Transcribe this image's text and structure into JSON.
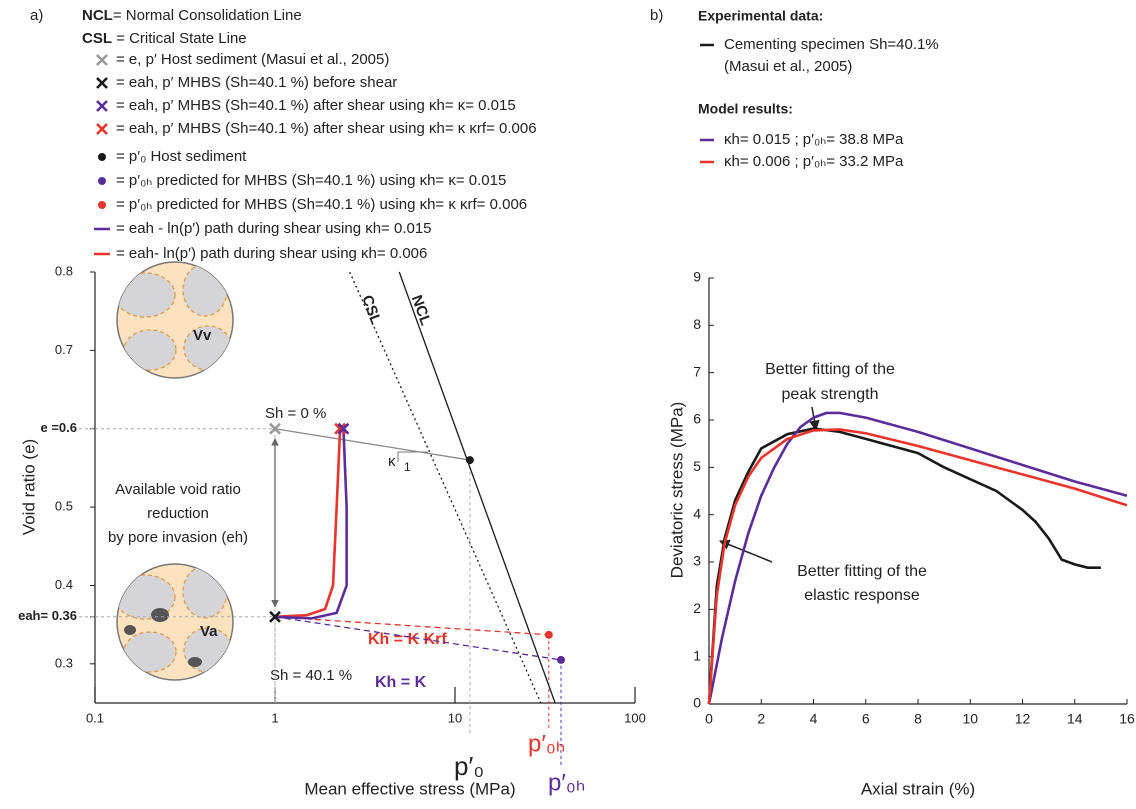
{
  "chart_data": [
    {
      "type": "line",
      "panel": "a)",
      "definitions": [
        {
          "term": "NCL",
          "text": "= Normal Consolidation Line"
        },
        {
          "term": "CSL",
          "text": " = Critical State Line"
        }
      ],
      "legend": [
        {
          "marker": "x",
          "color": "#9a9a9a",
          "text": "= e, p′ Host sediment (Masui et al., 2005)"
        },
        {
          "marker": "x",
          "color": "#1a1a1a",
          "text": "= eah, p′ MHBS (Sh=40.1 %) before shear"
        },
        {
          "marker": "x",
          "color": "#5b2d9a",
          "text": "= eah, p′ MHBS (Sh=40.1 %) after shear using κh= κ= 0.015"
        },
        {
          "marker": "x",
          "color": "#e8342a",
          "text": "= eah, p′ MHBS (Sh=40.1 %) after shear using κh= κ κrf= 0.006"
        },
        {
          "marker": "dot",
          "color": "#1a1a1a",
          "text": "= p′₀ Host sediment"
        },
        {
          "marker": "dot",
          "color": "#5b2d9a",
          "text": "= p′₀ₕ predicted for MHBS (Sh=40.1 %) using κh= κ= 0.015"
        },
        {
          "marker": "dot",
          "color": "#e8342a",
          "text": "= p′₀ₕ predicted for MHBS (Sh=40.1 %) using κh= κ κrf= 0.006"
        },
        {
          "marker": "line",
          "color": "#5b2d9a",
          "text": "= eah - ln(p′) path during shear using κh= 0.015"
        },
        {
          "marker": "line",
          "color": "#e8342a",
          "text": "= eah- ln(p′) path during shear using κh= 0.006"
        }
      ],
      "xlabel": "Mean effective stress (MPa)",
      "ylabel": "Void ratio (e)",
      "xscale": "log",
      "xlim": [
        0.1,
        100
      ],
      "xticks": [
        0.1,
        1,
        10,
        100
      ],
      "ylim": [
        0.25,
        0.8
      ],
      "yticks": [
        0.3,
        {
          "value": 0.36,
          "label": "eah= 0.36"
        },
        0.4,
        0.5,
        {
          "value": 0.6,
          "label": "e =0.6"
        },
        0.7,
        0.8
      ],
      "series": [
        {
          "name": "NCL",
          "color": "#1a1a1a",
          "dash": "solid",
          "x": [
            4.9,
            36
          ],
          "values": [
            0.8,
            0.25
          ]
        },
        {
          "name": "CSL",
          "color": "#1a1a1a",
          "dash": "dotted",
          "x": [
            2.6,
            30
          ],
          "values": [
            0.8,
            0.25
          ]
        },
        {
          "color": "#8a8a8a",
          "dash": "solid",
          "x": [
            1,
            12.1
          ],
          "values": [
            0.6,
            0.56
          ]
        },
        {
          "color": "#5b2d9a",
          "dash": "dashed",
          "x": [
            1,
            38.8
          ],
          "values": [
            0.36,
            0.305
          ]
        },
        {
          "color": "#e8342a",
          "dash": "dashed",
          "x": [
            1,
            33.2
          ],
          "values": [
            0.36,
            0.337
          ]
        },
        {
          "color": "#e8342a",
          "dash": "solid",
          "x": [
            1,
            1.5,
            1.9,
            2.1,
            2.2,
            2.3
          ],
          "values": [
            0.36,
            0.362,
            0.37,
            0.4,
            0.5,
            0.6
          ]
        },
        {
          "color": "#5b2d9a",
          "dash": "solid",
          "x": [
            1,
            1.6,
            2.2,
            2.5,
            2.5,
            2.4
          ],
          "values": [
            0.36,
            0.358,
            0.365,
            0.4,
            0.5,
            0.6
          ]
        }
      ],
      "points": [
        {
          "marker": "x",
          "color": "#9a9a9a",
          "x": 1,
          "y": 0.6
        },
        {
          "marker": "x",
          "color": "#1a1a1a",
          "x": 1,
          "y": 0.36
        },
        {
          "marker": "x",
          "color": "#e8342a",
          "x": 2.3,
          "y": 0.6
        },
        {
          "marker": "x",
          "color": "#5b2d9a",
          "x": 2.4,
          "y": 0.6
        },
        {
          "marker": "dot",
          "color": "#1a1a1a",
          "x": 12.1,
          "y": 0.56
        },
        {
          "marker": "dot",
          "color": "#5b2d9a",
          "x": 38.8,
          "y": 0.305
        },
        {
          "marker": "dot",
          "color": "#e8342a",
          "x": 33.2,
          "y": 0.337
        }
      ],
      "annotations": {
        "sh0": "Sh = 0 %",
        "sh40": "Sh = 40.1 %",
        "kappa": "κ",
        "one": "1",
        "krf": "Kh = K Krf",
        "k": "Kh = K",
        "avail": [
          "Available void ratio",
          "reduction",
          "by pore invasion (eh)"
        ],
        "p0": "p′₀",
        "p0h_red": "p′₀ₕ",
        "p0h_purple": "p′₀ₕ",
        "vv": "Vv",
        "va": "Va"
      }
    },
    {
      "type": "line",
      "panel": "b)",
      "legend_headers": {
        "experimental": "Experimental data:",
        "model": "Model results:"
      },
      "xlabel": "Axial strain (%)",
      "ylabel": "Deviatoric stress (MPa)",
      "xlim": [
        0,
        16
      ],
      "xticks": [
        0,
        2,
        4,
        6,
        8,
        10,
        12,
        14,
        16
      ],
      "ylim": [
        0,
        9
      ],
      "yticks": [
        0,
        1,
        2,
        3,
        4,
        5,
        6,
        7,
        8,
        9
      ],
      "series": [
        {
          "name": "Cementing specimen Sh=40.1%",
          "note": "(Masui et al., 2005)",
          "color": "#1a1a1a",
          "x": [
            0,
            0.3,
            0.6,
            1,
            1.5,
            2,
            3,
            4,
            5,
            6,
            7,
            8,
            9,
            10,
            11,
            12,
            12.5,
            13,
            13.5,
            14,
            14.5,
            15
          ],
          "values": [
            0,
            2.5,
            3.5,
            4.3,
            4.9,
            5.4,
            5.7,
            5.82,
            5.75,
            5.6,
            5.45,
            5.3,
            5.0,
            4.75,
            4.5,
            4.1,
            3.85,
            3.5,
            3.05,
            2.95,
            2.88,
            2.88
          ]
        },
        {
          "name": "κh= 0.015 ; p′₀ₕ= 38.8 MPa",
          "color": "#5b2d9a",
          "x": [
            0,
            0.5,
            1,
            1.5,
            2,
            2.5,
            3,
            3.5,
            4,
            4.5,
            5,
            6,
            8,
            10,
            12,
            14,
            16
          ],
          "values": [
            0,
            1.4,
            2.6,
            3.6,
            4.4,
            5.0,
            5.5,
            5.85,
            6.05,
            6.15,
            6.15,
            6.05,
            5.75,
            5.4,
            5.05,
            4.7,
            4.4
          ]
        },
        {
          "name": "κh= 0.006 ; p′₀ₕ= 33.2 MPa",
          "color": "#e8342a",
          "x": [
            0,
            0.3,
            0.6,
            1,
            1.5,
            2,
            3,
            4,
            5,
            6,
            8,
            10,
            12,
            14,
            16
          ],
          "values": [
            0,
            2.3,
            3.4,
            4.2,
            4.8,
            5.2,
            5.6,
            5.78,
            5.8,
            5.72,
            5.45,
            5.15,
            4.85,
            4.55,
            4.2
          ]
        }
      ],
      "annotations": {
        "peak": [
          "Better fitting of the",
          "peak strength"
        ],
        "elastic": [
          "Better fitting of the",
          "elastic response"
        ]
      }
    }
  ]
}
